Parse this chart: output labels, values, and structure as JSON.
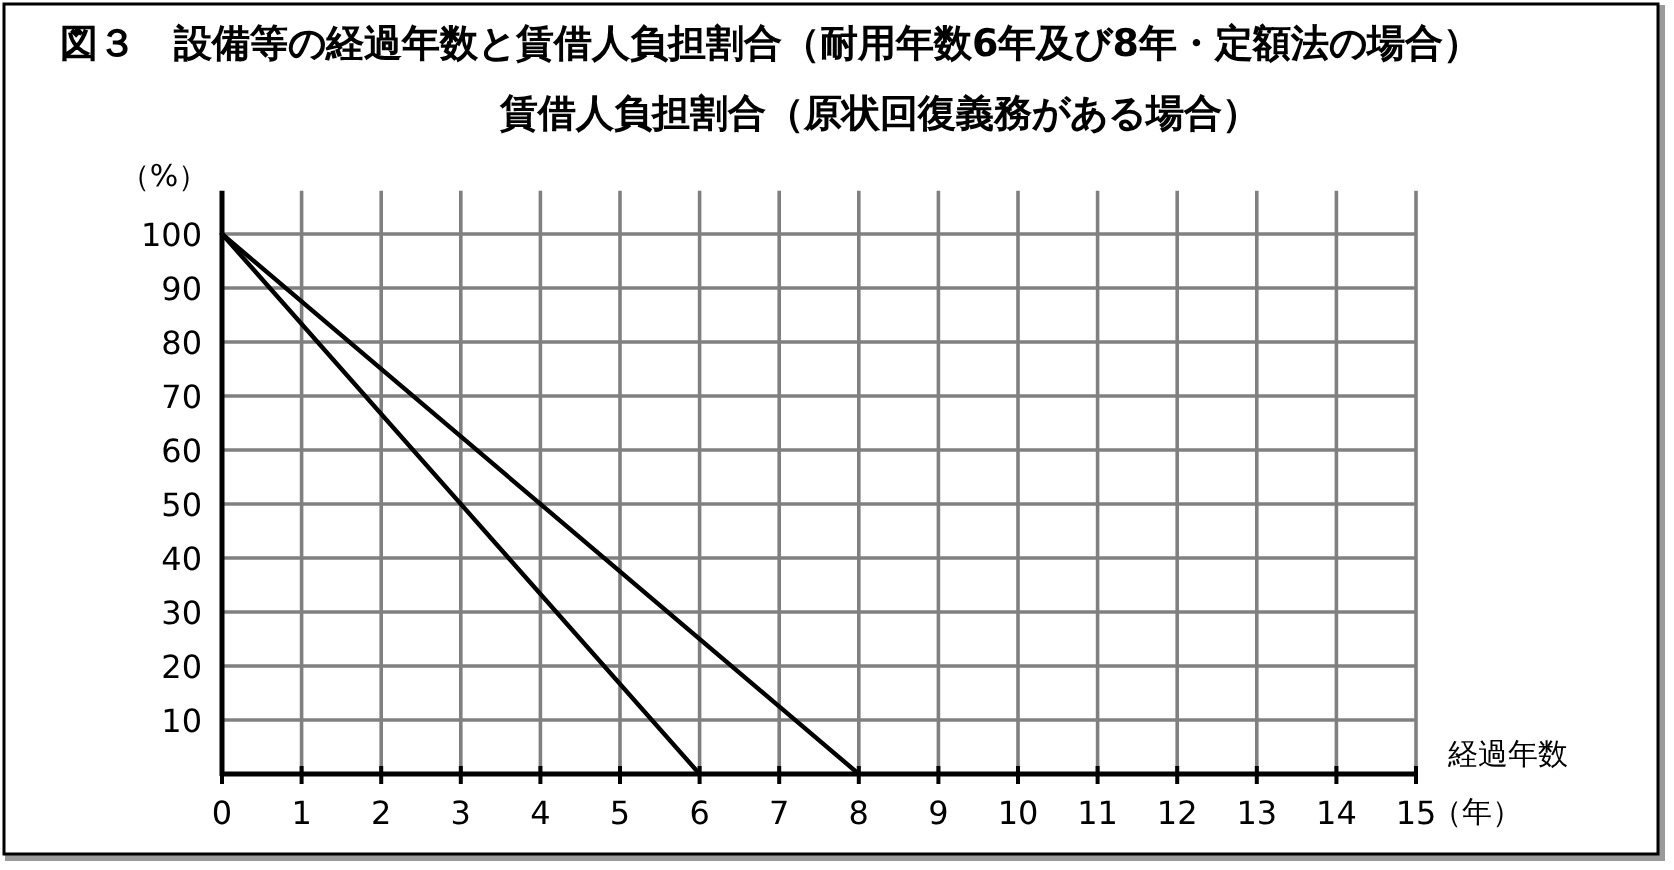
{
  "chart_data": {
    "type": "line",
    "title": "図３　設備等の経過年数と賃借人負担割合（耐用年数6年及び8年・定額法の場合）",
    "subtitle": "賃借人負担割合（原状回復義務がある場合）",
    "ylabel": "（%）",
    "xlabel": "経過年数",
    "annotations": [
      "（年）"
    ],
    "series": [
      {
        "color": "#000000",
        "x": [
          0,
          6
        ],
        "values": [
          100,
          0
        ]
      },
      {
        "color": "#000000",
        "x": [
          0,
          8
        ],
        "values": [
          100,
          0
        ]
      }
    ],
    "xlim": [
      0,
      15
    ],
    "ylim": [
      0,
      108
    ],
    "xticks": [
      0,
      1,
      2,
      3,
      4,
      5,
      6,
      7,
      8,
      9,
      10,
      11,
      12,
      13,
      14,
      15
    ],
    "yticks": [
      10,
      20,
      30,
      40,
      50,
      60,
      70,
      80,
      90,
      100
    ],
    "grid": true,
    "marker": "none",
    "line_style": "solid"
  }
}
